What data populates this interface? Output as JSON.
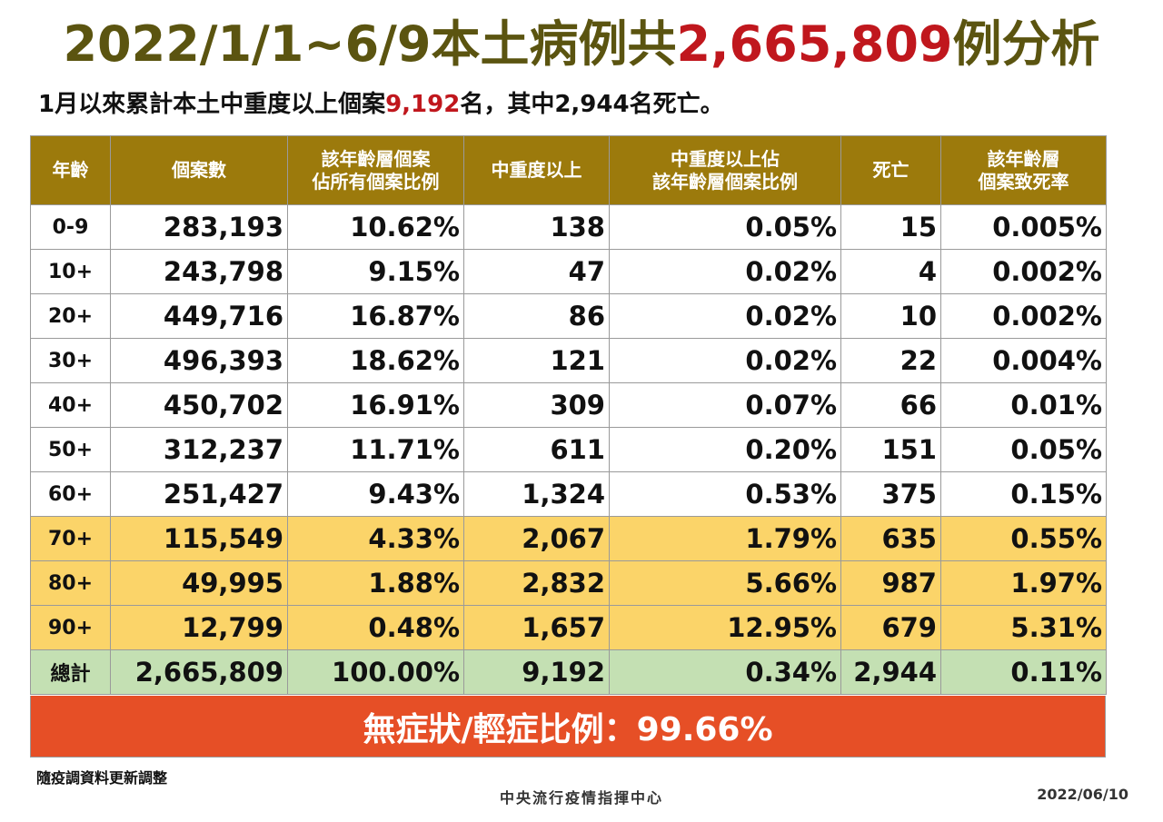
{
  "title": {
    "prefix": "2022/1/1~6/9本土病例共",
    "highlight": "2,665,809",
    "suffix": "例分析"
  },
  "subtitle": {
    "prefix": "1月以來累計本土中重度以上個案",
    "highlight": "9,192",
    "suffix": "名，其中2,944名死亡。"
  },
  "table": {
    "headers": [
      [
        "年齡"
      ],
      [
        "個案數"
      ],
      [
        "該年齡層個案",
        "佔所有個案比例"
      ],
      [
        "中重度以上"
      ],
      [
        "中重度以上佔",
        "該年齡層個案比例"
      ],
      [
        "死亡"
      ],
      [
        "該年齡層",
        "個案致死率"
      ]
    ],
    "rows": [
      [
        "0-9",
        "283,193",
        "10.62%",
        "138",
        "0.05%",
        "15",
        "0.005%"
      ],
      [
        "10+",
        "243,798",
        "9.15%",
        "47",
        "0.02%",
        "4",
        "0.002%"
      ],
      [
        "20+",
        "449,716",
        "16.87%",
        "86",
        "0.02%",
        "10",
        "0.002%"
      ],
      [
        "30+",
        "496,393",
        "18.62%",
        "121",
        "0.02%",
        "22",
        "0.004%"
      ],
      [
        "40+",
        "450,702",
        "16.91%",
        "309",
        "0.07%",
        "66",
        "0.01%"
      ],
      [
        "50+",
        "312,237",
        "11.71%",
        "611",
        "0.20%",
        "151",
        "0.05%"
      ],
      [
        "60+",
        "251,427",
        "9.43%",
        "1,324",
        "0.53%",
        "375",
        "0.15%"
      ],
      [
        "70+",
        "115,549",
        "4.33%",
        "2,067",
        "1.79%",
        "635",
        "0.55%"
      ],
      [
        "80+",
        "49,995",
        "1.88%",
        "2,832",
        "5.66%",
        "987",
        "1.97%"
      ],
      [
        "90+",
        "12,799",
        "0.48%",
        "1,657",
        "12.95%",
        "679",
        "5.31%"
      ],
      [
        "總計",
        "2,665,809",
        "100.00%",
        "9,192",
        "0.34%",
        "2,944",
        "0.11%"
      ]
    ]
  },
  "banner": "無症狀/輕症比例：99.66%",
  "note": "隨疫調資料更新調整",
  "footer": {
    "org": "中央流行疫情指揮中心",
    "date": "2022/06/10"
  },
  "colors": {
    "header_bg": "#9c7a0c",
    "title": "#5b5410",
    "highlight": "#c0171d",
    "yellow_row": "#fbd469",
    "total_row": "#c4e0b3",
    "banner_bg": "#e64f26"
  }
}
